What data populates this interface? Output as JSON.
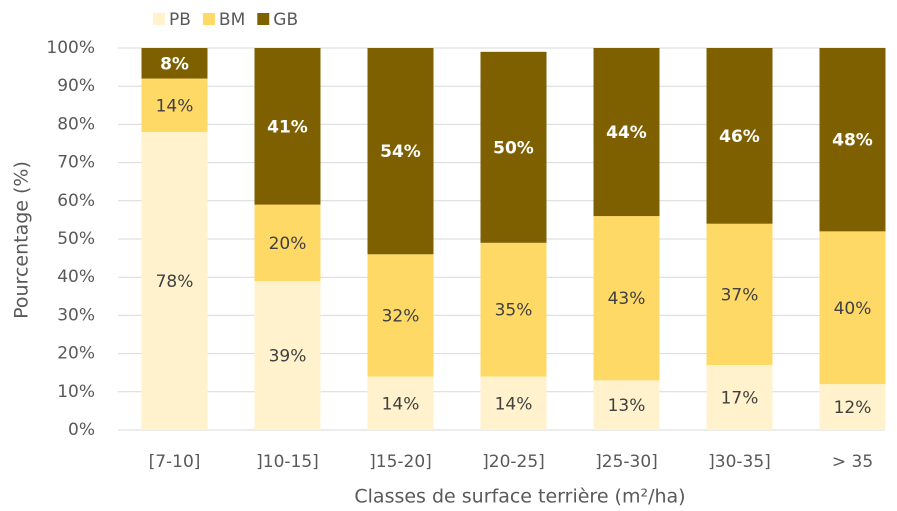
{
  "chart_data": {
    "type": "stacked_bar",
    "y_label": "Pourcentage (%)",
    "x_label": "Classes de surface terrière (m²/ha)",
    "categories": [
      "[7-10]",
      "]10-15]",
      "]15-20]",
      "]20-25]",
      "]25-30]",
      "]30-35]",
      "> 35"
    ],
    "series": [
      {
        "name": "PB",
        "color": "#fff2cc",
        "values": [
          78,
          39,
          14,
          14,
          13,
          17,
          12
        ],
        "value_labels": [
          "78%",
          "39%",
          "14%",
          "14%",
          "13%",
          "17%",
          "12%"
        ]
      },
      {
        "name": "BM",
        "color": "#ffd966",
        "values": [
          14,
          20,
          32,
          35,
          43,
          37,
          40
        ],
        "value_labels": [
          "14%",
          "20%",
          "32%",
          "35%",
          "43%",
          "37%",
          "40%"
        ]
      },
      {
        "name": "GB",
        "color": "#7f6000",
        "values": [
          8,
          41,
          54,
          50,
          44,
          46,
          48
        ],
        "value_labels": [
          "8%",
          "41%",
          "54%",
          "50%",
          "44%",
          "46%",
          "48%"
        ]
      }
    ],
    "ylim": [
      0,
      100
    ],
    "yticks": [
      {
        "value": 0,
        "label": "0%"
      },
      {
        "value": 10,
        "label": "10%"
      },
      {
        "value": 20,
        "label": "20%"
      },
      {
        "value": 30,
        "label": "30%"
      },
      {
        "value": 40,
        "label": "40%"
      },
      {
        "value": 50,
        "label": "50%"
      },
      {
        "value": 60,
        "label": "60%"
      },
      {
        "value": 70,
        "label": "70%"
      },
      {
        "value": 80,
        "label": "80%"
      },
      {
        "value": 90,
        "label": "90%"
      },
      {
        "value": 100,
        "label": "100%"
      }
    ],
    "grid": true,
    "legend": "top"
  }
}
